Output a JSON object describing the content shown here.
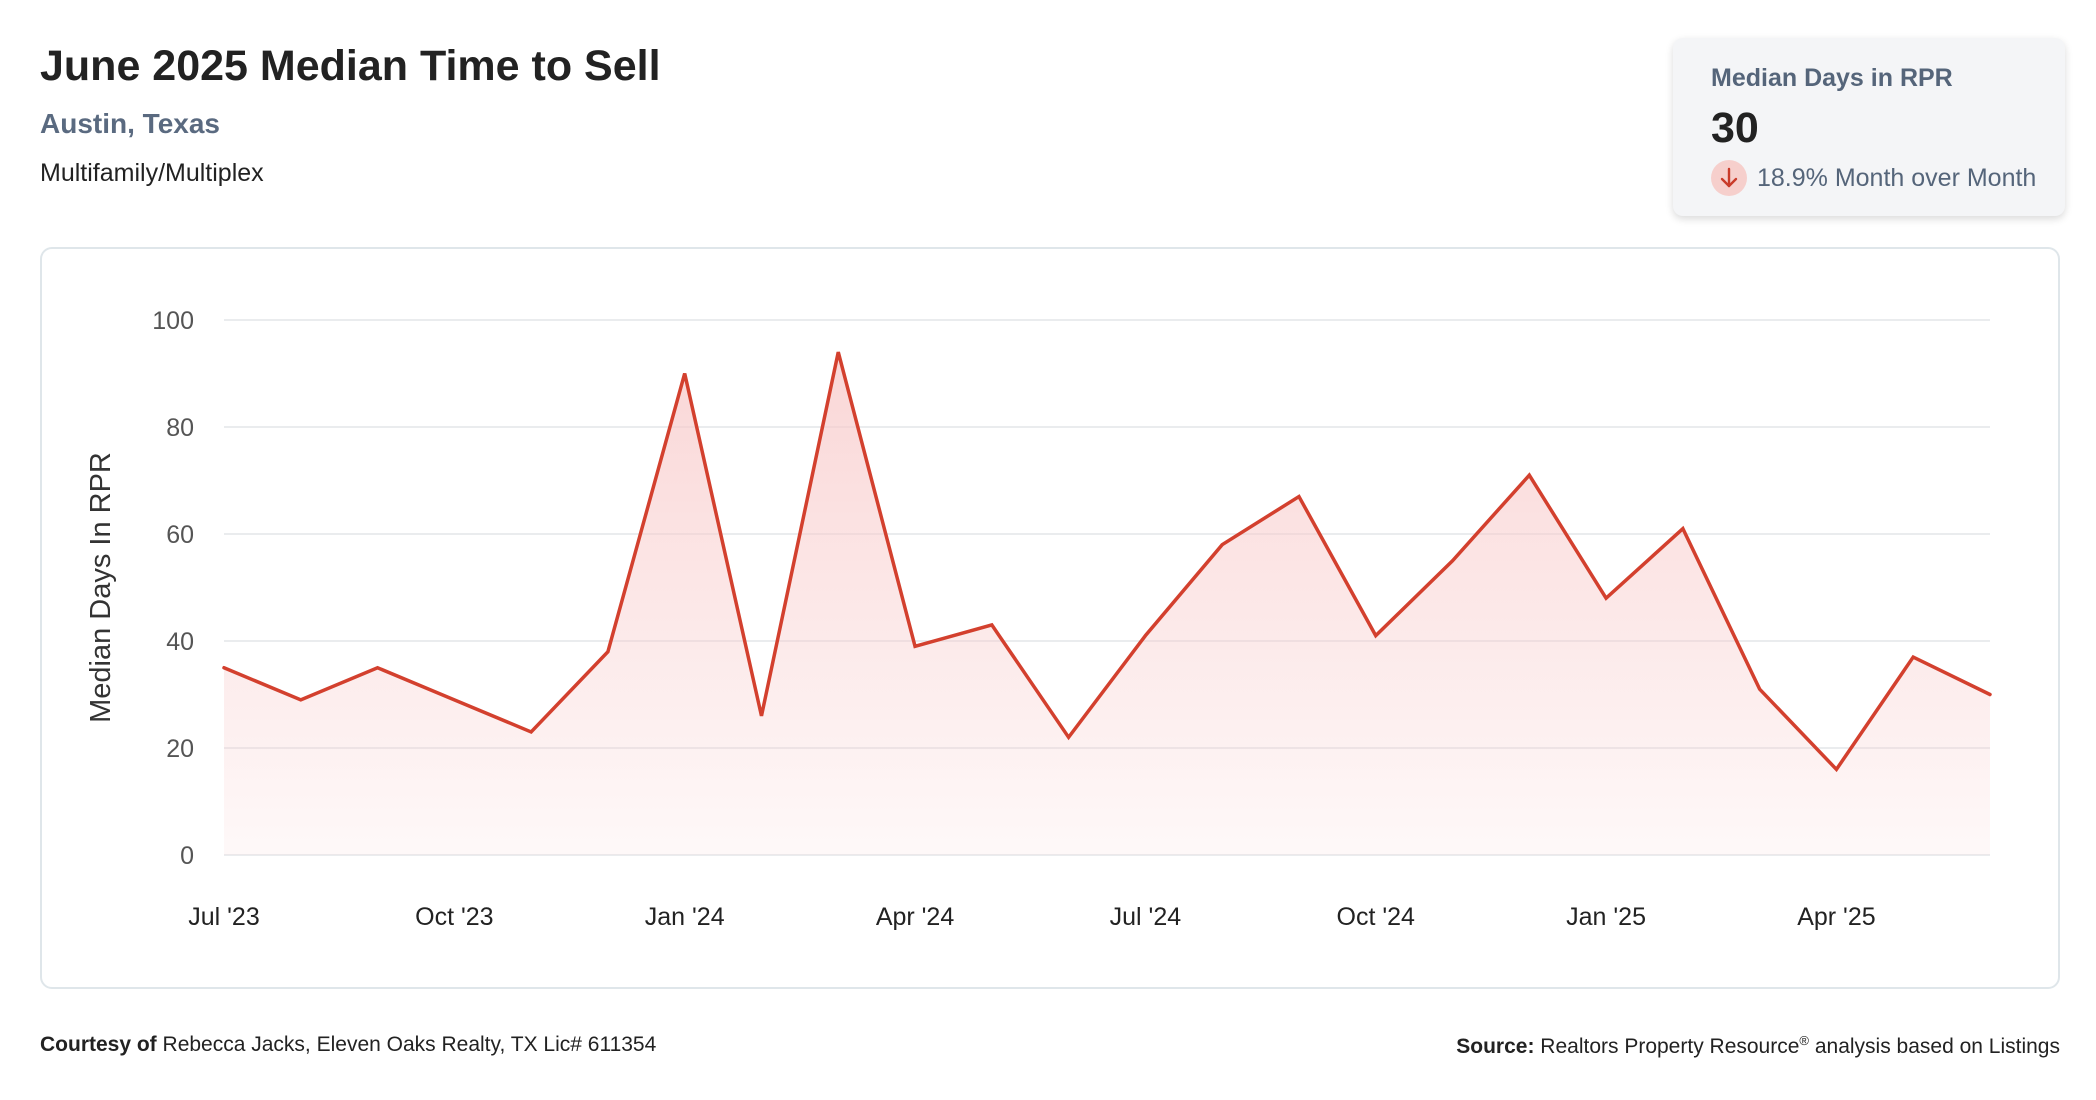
{
  "header": {
    "title": "June 2025 Median Time to Sell",
    "location": "Austin, Texas",
    "property_type": "Multifamily/Multiplex"
  },
  "stat_card": {
    "label": "Median Days in RPR",
    "value": "30",
    "change": "18.9% Month over Month",
    "direction_icon": "arrow-down-icon",
    "icon_bg_color": "#f6cfcc",
    "icon_color": "#c93b2a"
  },
  "footer": {
    "courtesy_label": "Courtesy of",
    "courtesy_text": "Rebecca Jacks, Eleven Oaks Realty, TX Lic# 611354",
    "source_label": "Source:",
    "source_text_pre": "Realtors Property Resource",
    "source_mark": "®",
    "source_text_post": " analysis based on Listings"
  },
  "chart_data": {
    "type": "area",
    "title": "",
    "xlabel": "",
    "ylabel": "Median Days In RPR",
    "ylim": [
      0,
      100
    ],
    "yticks": [
      0,
      20,
      40,
      60,
      80,
      100
    ],
    "grid": true,
    "line_color": "#d3402e",
    "fill_color": "#f8c9c9",
    "xtick_labels": [
      {
        "index": 0,
        "label": "Jul '23"
      },
      {
        "index": 3,
        "label": "Oct '23"
      },
      {
        "index": 6,
        "label": "Jan '24"
      },
      {
        "index": 9,
        "label": "Apr '24"
      },
      {
        "index": 12,
        "label": "Jul '24"
      },
      {
        "index": 15,
        "label": "Oct '24"
      },
      {
        "index": 18,
        "label": "Jan '25"
      },
      {
        "index": 21,
        "label": "Apr '25"
      }
    ],
    "x": [
      "2023-07",
      "2023-08",
      "2023-09",
      "2023-10",
      "2023-11",
      "2023-12",
      "2024-01",
      "2024-02",
      "2024-03",
      "2024-04",
      "2024-05",
      "2024-06",
      "2024-07",
      "2024-08",
      "2024-09",
      "2024-10",
      "2024-11",
      "2024-12",
      "2025-01",
      "2025-02",
      "2025-03",
      "2025-04",
      "2025-05",
      "2025-06"
    ],
    "series": [
      {
        "values": [
          35,
          29,
          35,
          29,
          23,
          38,
          90,
          26,
          94,
          39,
          43,
          22,
          41,
          58,
          67,
          41,
          55,
          71,
          48,
          61,
          31,
          16,
          37,
          30
        ]
      }
    ]
  }
}
